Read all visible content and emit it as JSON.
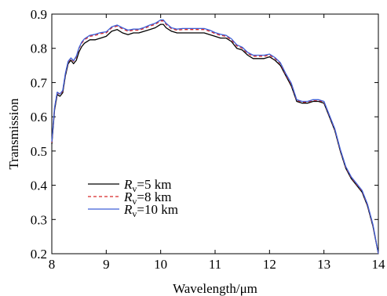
{
  "chart_data": {
    "type": "line",
    "xlabel": "Wavelength/μm",
    "ylabel": "Transmission",
    "xlim": [
      8,
      14
    ],
    "ylim": [
      0.2,
      0.9
    ],
    "xticks": [
      8,
      9,
      10,
      11,
      12,
      13,
      14
    ],
    "xtick_labels": [
      "8",
      "9",
      "10",
      "11",
      "12",
      "13",
      "14"
    ],
    "yticks": [
      0.2,
      0.3,
      0.4,
      0.5,
      0.6,
      0.7,
      0.8,
      0.9
    ],
    "ytick_labels": [
      "0.2",
      "0.3",
      "0.4",
      "0.5",
      "0.6",
      "0.7",
      "0.8",
      "0.9"
    ],
    "grid": false,
    "legend_position": "lower-left",
    "series": [
      {
        "name": "R_v=5 km",
        "legend": {
          "main": "R",
          "sub": "v",
          "rest": "=5 km"
        },
        "color": "#000000",
        "dash": "solid",
        "x": [
          8.0,
          8.05,
          8.1,
          8.15,
          8.2,
          8.25,
          8.3,
          8.35,
          8.4,
          8.45,
          8.5,
          8.55,
          8.6,
          8.7,
          8.8,
          8.9,
          9.0,
          9.1,
          9.2,
          9.3,
          9.4,
          9.5,
          9.6,
          9.7,
          9.8,
          9.9,
          10.0,
          10.05,
          10.1,
          10.2,
          10.3,
          10.4,
          10.5,
          10.6,
          10.7,
          10.8,
          10.9,
          11.0,
          11.1,
          11.2,
          11.3,
          11.4,
          11.5,
          11.6,
          11.7,
          11.8,
          11.9,
          12.0,
          12.1,
          12.2,
          12.3,
          12.4,
          12.5,
          12.6,
          12.7,
          12.8,
          12.9,
          13.0,
          13.1,
          13.2,
          13.3,
          13.4,
          13.5,
          13.6,
          13.7,
          13.8,
          13.9,
          14.0
        ],
        "y": [
          0.52,
          0.62,
          0.665,
          0.66,
          0.67,
          0.72,
          0.755,
          0.765,
          0.755,
          0.765,
          0.79,
          0.805,
          0.815,
          0.825,
          0.825,
          0.83,
          0.835,
          0.85,
          0.855,
          0.845,
          0.84,
          0.845,
          0.845,
          0.85,
          0.855,
          0.86,
          0.87,
          0.87,
          0.86,
          0.85,
          0.845,
          0.845,
          0.845,
          0.845,
          0.845,
          0.845,
          0.84,
          0.835,
          0.83,
          0.83,
          0.82,
          0.8,
          0.795,
          0.78,
          0.77,
          0.77,
          0.77,
          0.775,
          0.765,
          0.75,
          0.72,
          0.69,
          0.645,
          0.64,
          0.64,
          0.645,
          0.645,
          0.64,
          0.6,
          0.56,
          0.5,
          0.45,
          0.42,
          0.4,
          0.38,
          0.34,
          0.28,
          0.2
        ]
      },
      {
        "name": "R_v=8 km",
        "legend": {
          "main": "R",
          "sub": "v",
          "rest": "=8 km"
        },
        "color": "#d62728",
        "dash": "4,3",
        "x": [
          8.0,
          8.05,
          8.1,
          8.15,
          8.2,
          8.25,
          8.3,
          8.35,
          8.4,
          8.45,
          8.5,
          8.55,
          8.6,
          8.7,
          8.8,
          8.9,
          9.0,
          9.1,
          9.2,
          9.3,
          9.4,
          9.5,
          9.6,
          9.7,
          9.8,
          9.9,
          10.0,
          10.05,
          10.1,
          10.2,
          10.3,
          10.4,
          10.5,
          10.6,
          10.7,
          10.8,
          10.9,
          11.0,
          11.1,
          11.2,
          11.3,
          11.4,
          11.5,
          11.6,
          11.7,
          11.8,
          11.9,
          12.0,
          12.1,
          12.2,
          12.3,
          12.4,
          12.5,
          12.6,
          12.7,
          12.8,
          12.9,
          13.0,
          13.1,
          13.2,
          13.3,
          13.4,
          13.5,
          13.6,
          13.7,
          13.8,
          13.9,
          14.0
        ],
        "y": [
          0.525,
          0.625,
          0.67,
          0.665,
          0.675,
          0.725,
          0.76,
          0.77,
          0.762,
          0.775,
          0.8,
          0.815,
          0.825,
          0.835,
          0.838,
          0.843,
          0.845,
          0.86,
          0.865,
          0.857,
          0.85,
          0.853,
          0.853,
          0.858,
          0.865,
          0.87,
          0.88,
          0.88,
          0.87,
          0.857,
          0.853,
          0.855,
          0.855,
          0.855,
          0.855,
          0.855,
          0.85,
          0.843,
          0.838,
          0.835,
          0.825,
          0.807,
          0.8,
          0.785,
          0.777,
          0.777,
          0.777,
          0.78,
          0.77,
          0.755,
          0.723,
          0.695,
          0.648,
          0.643,
          0.643,
          0.648,
          0.648,
          0.643,
          0.603,
          0.563,
          0.503,
          0.453,
          0.423,
          0.403,
          0.383,
          0.343,
          0.283,
          0.2
        ]
      },
      {
        "name": "R_v=10 km",
        "legend": {
          "main": "R",
          "sub": "v",
          "rest": "=10 km"
        },
        "color": "#3d5fd6",
        "dash": "solid",
        "x": [
          8.0,
          8.05,
          8.1,
          8.15,
          8.2,
          8.25,
          8.3,
          8.35,
          8.4,
          8.45,
          8.5,
          8.55,
          8.6,
          8.7,
          8.8,
          8.9,
          9.0,
          9.1,
          9.2,
          9.3,
          9.4,
          9.5,
          9.6,
          9.7,
          9.8,
          9.9,
          10.0,
          10.05,
          10.1,
          10.2,
          10.3,
          10.4,
          10.5,
          10.6,
          10.7,
          10.8,
          10.9,
          11.0,
          11.1,
          11.2,
          11.3,
          11.4,
          11.5,
          11.6,
          11.7,
          11.8,
          11.9,
          12.0,
          12.1,
          12.2,
          12.3,
          12.4,
          12.5,
          12.6,
          12.7,
          12.8,
          12.9,
          13.0,
          13.1,
          13.2,
          13.3,
          13.4,
          13.5,
          13.6,
          13.7,
          13.8,
          13.9,
          14.0
        ],
        "y": [
          0.527,
          0.627,
          0.672,
          0.667,
          0.677,
          0.727,
          0.762,
          0.772,
          0.764,
          0.777,
          0.802,
          0.818,
          0.828,
          0.838,
          0.841,
          0.846,
          0.848,
          0.863,
          0.868,
          0.86,
          0.853,
          0.856,
          0.856,
          0.861,
          0.868,
          0.873,
          0.883,
          0.883,
          0.873,
          0.86,
          0.856,
          0.858,
          0.858,
          0.858,
          0.858,
          0.858,
          0.853,
          0.846,
          0.841,
          0.838,
          0.828,
          0.81,
          0.803,
          0.788,
          0.78,
          0.78,
          0.78,
          0.783,
          0.773,
          0.758,
          0.726,
          0.698,
          0.65,
          0.645,
          0.645,
          0.65,
          0.65,
          0.645,
          0.605,
          0.565,
          0.505,
          0.455,
          0.425,
          0.405,
          0.385,
          0.345,
          0.285,
          0.2
        ]
      }
    ]
  }
}
